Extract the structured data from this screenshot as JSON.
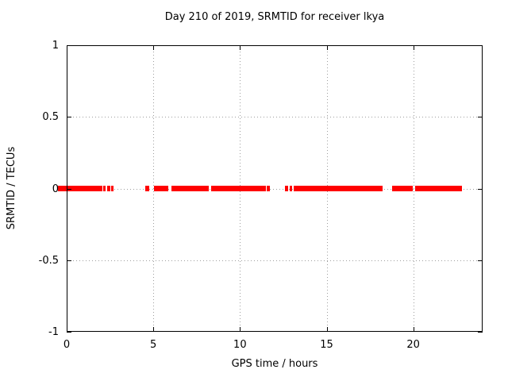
{
  "title": "Day 210 of 2019, SRMTID for receiver lkya",
  "chart_data": {
    "type": "scatter",
    "title": "Day 210 of 2019, SRMTID for receiver lkya",
    "xlabel": "GPS time / hours",
    "ylabel": "SRMTID / TECUs",
    "xlim": [
      0,
      24
    ],
    "ylim": [
      -1,
      1
    ],
    "xticks": [
      0,
      5,
      10,
      15,
      20
    ],
    "yticks": [
      1,
      0.5,
      0,
      -0.5,
      -1
    ],
    "grid": true,
    "legend_position": "none",
    "marker_color": "#ff0000",
    "series": [
      {
        "name": "SRMTID",
        "value_tecus": 0,
        "time_segments_hours": [
          [
            -0.5,
            2.06
          ],
          [
            2.11,
            2.24
          ],
          [
            2.34,
            2.52
          ],
          [
            2.56,
            2.7
          ],
          [
            4.53,
            4.76
          ],
          [
            5.04,
            5.88
          ],
          [
            6.04,
            8.2
          ],
          [
            8.33,
            11.49
          ],
          [
            11.54,
            11.72
          ],
          [
            12.59,
            12.77
          ],
          [
            12.87,
            13.0
          ],
          [
            13.09,
            18.22
          ],
          [
            18.77,
            19.96
          ],
          [
            20.1,
            22.8
          ]
        ]
      }
    ]
  },
  "colors": {
    "marker": "#ff0000",
    "grid": "#9e9e9e",
    "axis": "#000000",
    "background": "#ffffff",
    "text": "#000000"
  }
}
